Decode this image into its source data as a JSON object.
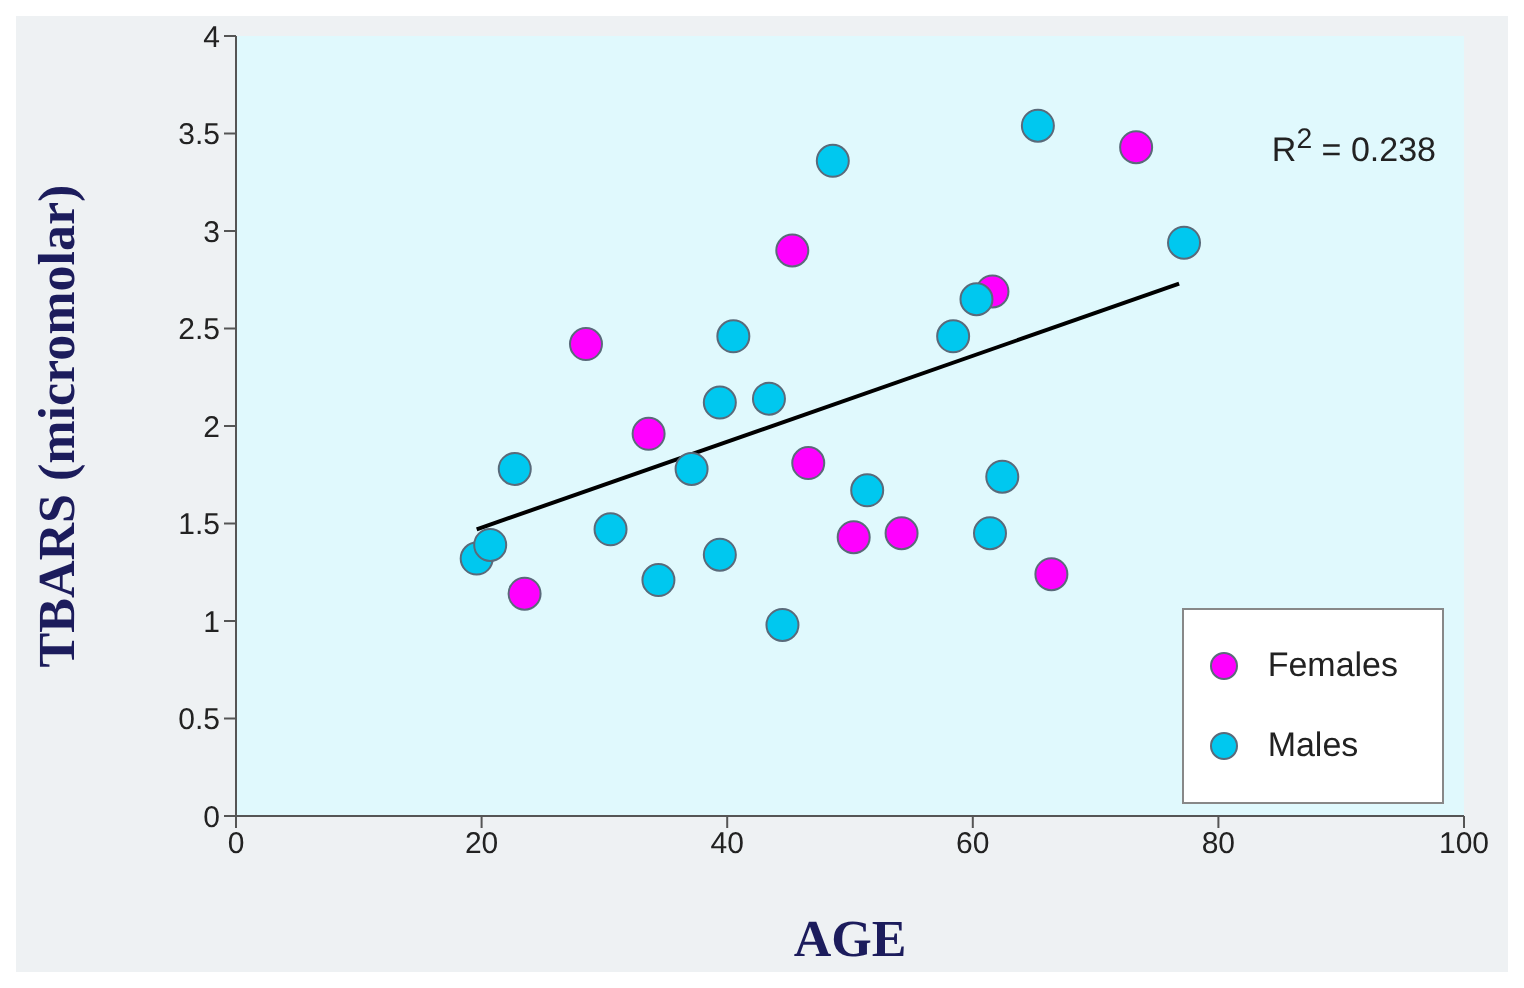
{
  "chart_data": {
    "type": "scatter",
    "xlabel": "AGE",
    "ylabel": "TBARS (micromolar)",
    "xlim": [
      0,
      100
    ],
    "xticks": [
      0,
      20,
      40,
      60,
      80,
      100
    ],
    "ylim": [
      0,
      4
    ],
    "yticks": [
      0,
      0.5,
      1,
      1.5,
      2,
      2.5,
      3,
      3.5,
      4
    ],
    "grid": false,
    "legend": "bottom right",
    "marker": "circle",
    "annotations": [
      "R$^{2}$ = 0.238"
    ],
    "series": [
      {
        "name": "Females",
        "color": "#ff00ff",
        "x": [
          23.5,
          28.5,
          33.6,
          45.3,
          46.6,
          50.3,
          54.2,
          61.6,
          66.4,
          73.3
        ],
        "values": [
          1.14,
          2.42,
          1.96,
          2.9,
          1.81,
          1.43,
          1.45,
          2.69,
          1.24,
          3.43
        ]
      },
      {
        "name": "Males",
        "color": "#00c8ef",
        "x": [
          19.6,
          20.7,
          22.7,
          30.5,
          34.4,
          37.1,
          39.4,
          39.4,
          40.5,
          43.4,
          44.5,
          48.6,
          51.4,
          58.4,
          60.3,
          61.4,
          62.4,
          65.3,
          77.2
        ],
        "values": [
          1.32,
          1.39,
          1.78,
          1.47,
          1.21,
          1.78,
          2.12,
          1.34,
          2.46,
          2.14,
          0.98,
          3.36,
          1.67,
          2.46,
          2.65,
          1.45,
          1.74,
          3.54,
          2.94
        ]
      },
      {
        "type": "line",
        "marker": "none",
        "color": "#000000",
        "x": [
          19.6,
          76.8
        ],
        "values": [
          1.47,
          2.73
        ]
      }
    ]
  }
}
